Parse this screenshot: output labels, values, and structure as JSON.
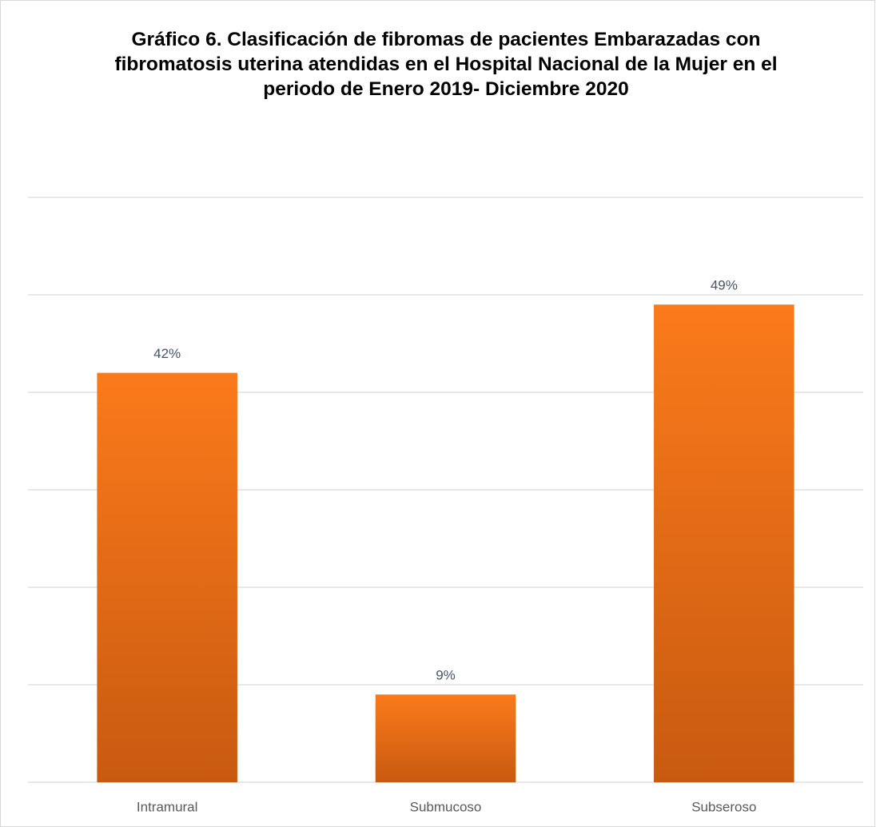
{
  "chart_data": {
    "type": "bar",
    "title": "Gráfico 6. Clasificación de fibromas de pacientes Embarazadas con fibromatosis uterina atendidas en el Hospital Nacional de la Mujer en el periodo de Enero 2019- Diciembre 2020",
    "categories": [
      "Intramural",
      "Submucoso",
      "Subseroso"
    ],
    "values": [
      42,
      9,
      49
    ],
    "value_labels": [
      "42%",
      "9%",
      "49%"
    ],
    "color": "#fb7a1b",
    "ylim": [
      0,
      60
    ],
    "yticks": [
      0,
      10,
      20,
      30,
      40,
      50,
      60
    ],
    "grid": true
  }
}
